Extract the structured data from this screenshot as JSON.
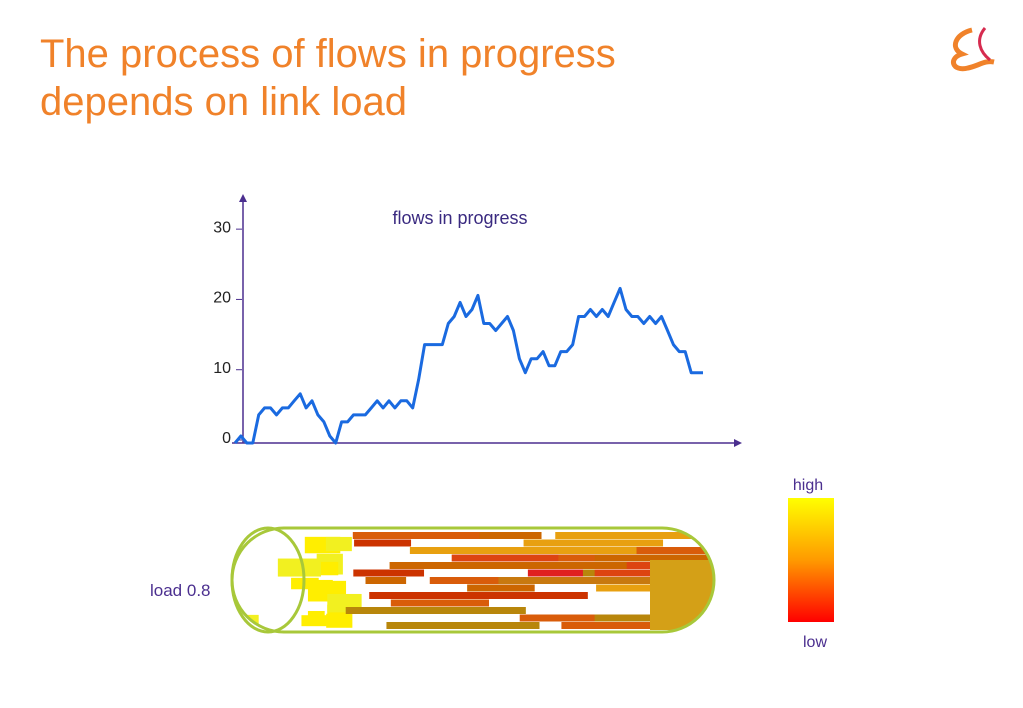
{
  "title": [
    "The process of flows in progress",
    "depends on link load"
  ],
  "load_label": "load 0.8",
  "scale": {
    "high": "high",
    "low": "low"
  },
  "chart_data": {
    "type": "line",
    "title": "flows in progress",
    "ylim": [
      0,
      35
    ],
    "yticks": [
      0,
      10,
      20,
      30
    ],
    "series": [
      {
        "color": "#1a6ae0",
        "values": [
          0,
          1,
          0,
          0,
          4,
          5,
          5,
          4,
          5,
          5,
          6,
          7,
          5,
          6,
          4,
          3,
          1,
          0,
          3,
          3,
          4,
          4,
          4,
          5,
          6,
          5,
          6,
          5,
          6,
          6,
          5,
          9,
          14,
          14,
          14,
          14,
          17,
          18,
          20,
          18,
          19,
          21,
          17,
          17,
          16,
          17,
          18,
          16,
          12,
          10,
          12,
          12,
          13,
          11,
          11,
          13,
          13,
          14,
          18,
          18,
          19,
          18,
          19,
          18,
          20,
          22,
          19,
          18,
          18,
          17,
          18,
          17,
          18,
          16,
          14,
          13,
          13,
          10,
          10,
          10
        ]
      }
    ]
  }
}
